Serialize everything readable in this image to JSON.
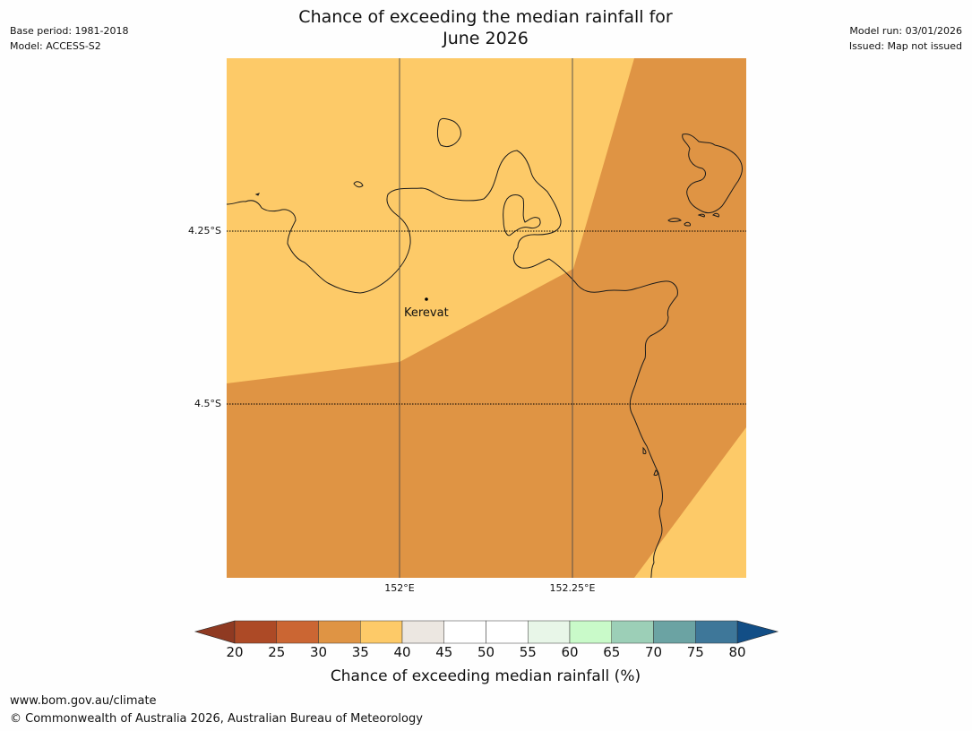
{
  "header": {
    "base_period": "Base period: 1981-2018",
    "model": "Model: ACCESS-S2",
    "model_run": "Model run: 03/01/2026",
    "issued": "Issued: Map not issued"
  },
  "title_line1": "Chance of exceeding the median rainfall for",
  "title_line2": "June 2026",
  "map": {
    "latitude_labels": [
      "4.25°S",
      "4.5°S"
    ],
    "longitude_labels": [
      "152°E",
      "152.25°E"
    ],
    "places": [
      {
        "name": "Kerevat"
      }
    ],
    "region_probabilities": [
      {
        "region": "north-west",
        "band": "35-40"
      },
      {
        "region": "south and east",
        "band": "30-35"
      },
      {
        "region": "far south-east corner",
        "band": "35-40"
      }
    ]
  },
  "legend": {
    "title": "Chance of exceeding median rainfall (%)",
    "ticks": [
      "20",
      "25",
      "30",
      "35",
      "40",
      "45",
      "50",
      "55",
      "60",
      "65",
      "70",
      "75",
      "80"
    ],
    "below_color": "#8f3a22",
    "above_color": "#124e86",
    "colors": [
      "#ad4a26",
      "#cb6633",
      "#df9444",
      "#fdca68",
      "#ece7e1",
      "#ffffff",
      "#ffffff",
      "#e8f6e8",
      "#c9fac9",
      "#9ccfb7",
      "#6ba3a3",
      "#3e7799"
    ]
  },
  "footer": {
    "url": "www.bom.gov.au/climate",
    "copyright": "© Commonwealth of Australia 2026, Australian Bureau of Meteorology"
  }
}
